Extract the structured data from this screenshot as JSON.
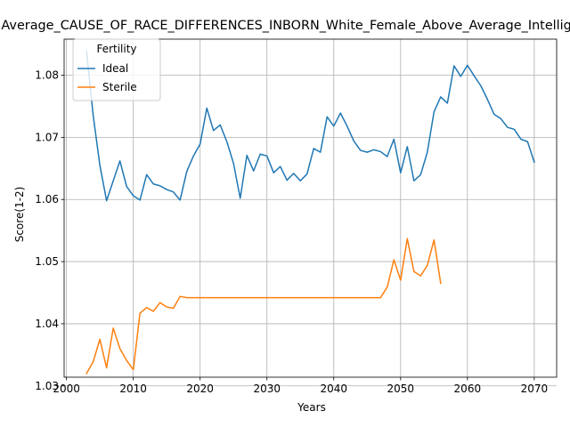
{
  "chart_data": {
    "type": "line",
    "title": "Average_CAUSE_OF_RACE_DIFFERENCES_INBORN_White_Female_Above_Average_Intelligence",
    "xlabel": "Years",
    "ylabel": "Score(1-2)",
    "xlim": [
      1999.65,
      2073.35
    ],
    "ylim": [
      1.0314,
      1.0858
    ],
    "xticks": [
      2000,
      2010,
      2020,
      2030,
      2040,
      2050,
      2060,
      2070
    ],
    "yticks": [
      1.03,
      1.04,
      1.05,
      1.06,
      1.07,
      1.08
    ],
    "ytick_labels": [
      "1.03",
      "1.04",
      "1.05",
      "1.06",
      "1.07",
      "1.08"
    ],
    "grid": true,
    "legend": {
      "title": "Fertility",
      "position": "upper-left"
    },
    "series": [
      {
        "name": "Ideal",
        "color": "#1f77b4",
        "points": [
          [
            2003,
            1.0839
          ],
          [
            2004,
            1.0735
          ],
          [
            2005,
            1.0655
          ],
          [
            2006,
            1.0598
          ],
          [
            2007,
            1.063
          ],
          [
            2008,
            1.0662
          ],
          [
            2009,
            1.0621
          ],
          [
            2010,
            1.0606
          ],
          [
            2011,
            1.0599
          ],
          [
            2012,
            1.064
          ],
          [
            2013,
            1.0625
          ],
          [
            2014,
            1.0622
          ],
          [
            2015,
            1.0616
          ],
          [
            2016,
            1.0612
          ],
          [
            2017,
            1.0599
          ],
          [
            2018,
            1.0645
          ],
          [
            2019,
            1.067
          ],
          [
            2020,
            1.0689
          ],
          [
            2021,
            1.0747
          ],
          [
            2022,
            1.0711
          ],
          [
            2023,
            1.072
          ],
          [
            2024,
            1.0693
          ],
          [
            2025,
            1.0658
          ],
          [
            2026,
            1.0602
          ],
          [
            2027,
            1.0671
          ],
          [
            2028,
            1.0646
          ],
          [
            2029,
            1.0673
          ],
          [
            2030,
            1.067
          ],
          [
            2031,
            1.0643
          ],
          [
            2032,
            1.0653
          ],
          [
            2033,
            1.0631
          ],
          [
            2034,
            1.0642
          ],
          [
            2035,
            1.063
          ],
          [
            2036,
            1.0641
          ],
          [
            2037,
            1.0682
          ],
          [
            2038,
            1.0676
          ],
          [
            2039,
            1.0733
          ],
          [
            2040,
            1.0718
          ],
          [
            2041,
            1.0739
          ],
          [
            2042,
            1.0718
          ],
          [
            2043,
            1.0694
          ],
          [
            2044,
            1.0679
          ],
          [
            2045,
            1.0676
          ],
          [
            2046,
            1.068
          ],
          [
            2047,
            1.0677
          ],
          [
            2048,
            1.0669
          ],
          [
            2049,
            1.0697
          ],
          [
            2050,
            1.0643
          ],
          [
            2051,
            1.0685
          ],
          [
            2052,
            1.063
          ],
          [
            2053,
            1.064
          ],
          [
            2054,
            1.0676
          ],
          [
            2055,
            1.0741
          ],
          [
            2056,
            1.0765
          ],
          [
            2057,
            1.0755
          ],
          [
            2058,
            1.0815
          ],
          [
            2059,
            1.0798
          ],
          [
            2060,
            1.0816
          ],
          [
            2061,
            1.0799
          ],
          [
            2062,
            1.0783
          ],
          [
            2063,
            1.0761
          ],
          [
            2064,
            1.0737
          ],
          [
            2065,
            1.073
          ],
          [
            2066,
            1.0716
          ],
          [
            2067,
            1.0713
          ],
          [
            2068,
            1.0697
          ],
          [
            2069,
            1.0693
          ],
          [
            2070,
            1.066
          ]
        ]
      },
      {
        "name": "Sterile",
        "color": "#ff7f0e",
        "points": [
          [
            2003,
            1.032
          ],
          [
            2004,
            1.0339
          ],
          [
            2005,
            1.0375
          ],
          [
            2006,
            1.0329
          ],
          [
            2007,
            1.0393
          ],
          [
            2008,
            1.036
          ],
          [
            2009,
            1.0341
          ],
          [
            2010,
            1.0326
          ],
          [
            2011,
            1.0417
          ],
          [
            2012,
            1.0426
          ],
          [
            2013,
            1.042
          ],
          [
            2014,
            1.0434
          ],
          [
            2015,
            1.0427
          ],
          [
            2016,
            1.0425
          ],
          [
            2017,
            1.0444
          ],
          [
            2018,
            1.0442
          ],
          [
            2019,
            1.0442
          ],
          [
            2020,
            1.0442
          ],
          [
            2021,
            1.0442
          ],
          [
            2022,
            1.0442
          ],
          [
            2023,
            1.0442
          ],
          [
            2024,
            1.0442
          ],
          [
            2025,
            1.0442
          ],
          [
            2026,
            1.0442
          ],
          [
            2027,
            1.0442
          ],
          [
            2028,
            1.0442
          ],
          [
            2029,
            1.0442
          ],
          [
            2030,
            1.0442
          ],
          [
            2031,
            1.0442
          ],
          [
            2032,
            1.0442
          ],
          [
            2033,
            1.0442
          ],
          [
            2034,
            1.0442
          ],
          [
            2035,
            1.0442
          ],
          [
            2036,
            1.0442
          ],
          [
            2037,
            1.0442
          ],
          [
            2038,
            1.0442
          ],
          [
            2039,
            1.0442
          ],
          [
            2040,
            1.0442
          ],
          [
            2041,
            1.0442
          ],
          [
            2042,
            1.0442
          ],
          [
            2043,
            1.0442
          ],
          [
            2044,
            1.0442
          ],
          [
            2045,
            1.0442
          ],
          [
            2046,
            1.0442
          ],
          [
            2047,
            1.0442
          ],
          [
            2048,
            1.0459
          ],
          [
            2049,
            1.0503
          ],
          [
            2050,
            1.047
          ],
          [
            2051,
            1.0537
          ],
          [
            2052,
            1.0484
          ],
          [
            2053,
            1.0477
          ],
          [
            2054,
            1.0494
          ],
          [
            2055,
            1.0535
          ],
          [
            2056,
            1.0465
          ]
        ]
      }
    ]
  }
}
